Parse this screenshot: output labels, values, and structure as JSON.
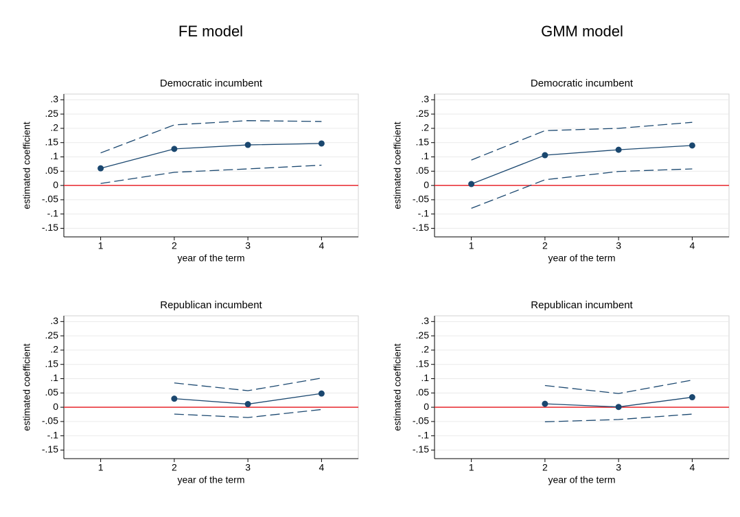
{
  "column_titles": [
    "FE model",
    "GMM model"
  ],
  "chart_data": [
    {
      "type": "line",
      "title": "Democratic incumbent",
      "xlabel": "year of the term",
      "ylabel": "estimated coefficient",
      "x": [
        1,
        2,
        3,
        4
      ],
      "series": [
        {
          "color": "#1a476f",
          "dash": false,
          "markers": true,
          "values": [
            0.06,
            0.128,
            0.142,
            0.147
          ]
        },
        {
          "color": "#1a476f",
          "dash": true,
          "markers": false,
          "values": [
            0.114,
            0.212,
            0.227,
            0.224
          ]
        },
        {
          "color": "#1a476f",
          "dash": true,
          "markers": false,
          "values": [
            0.007,
            0.046,
            0.058,
            0.071
          ]
        }
      ],
      "hline": {
        "value": 0,
        "color": "#e8262b"
      },
      "xlim": [
        0.5,
        4.5
      ],
      "xticks": [
        1,
        2,
        3,
        4
      ],
      "ylim": [
        -0.18,
        0.32
      ],
      "yticks": [
        {
          "value": -0.15,
          "label": "-.15"
        },
        {
          "value": -0.1,
          "label": "-.1"
        },
        {
          "value": -0.05,
          "label": "-.05"
        },
        0,
        {
          "value": 0.05,
          "label": ".05"
        },
        {
          "value": 0.1,
          "label": ".1"
        },
        {
          "value": 0.15,
          "label": ".15"
        },
        {
          "value": 0.2,
          "label": ".2"
        },
        {
          "value": 0.25,
          "label": ".25"
        },
        {
          "value": 0.3,
          "label": ".3"
        }
      ],
      "grid": true
    },
    {
      "type": "line",
      "title": "Democratic incumbent",
      "xlabel": "year of the term",
      "ylabel": "estimated coefficient",
      "x": [
        1,
        2,
        3,
        4
      ],
      "series": [
        {
          "color": "#1a476f",
          "dash": false,
          "markers": true,
          "values": [
            0.005,
            0.106,
            0.125,
            0.14
          ]
        },
        {
          "color": "#1a476f",
          "dash": true,
          "markers": false,
          "values": [
            0.089,
            0.192,
            0.2,
            0.221
          ]
        },
        {
          "color": "#1a476f",
          "dash": true,
          "markers": false,
          "values": [
            -0.08,
            0.02,
            0.049,
            0.058
          ]
        }
      ],
      "hline": {
        "value": 0,
        "color": "#e8262b"
      },
      "xlim": [
        0.5,
        4.5
      ],
      "xticks": [
        1,
        2,
        3,
        4
      ],
      "ylim": [
        -0.18,
        0.32
      ],
      "yticks": [
        {
          "value": -0.15,
          "label": "-.15"
        },
        {
          "value": -0.1,
          "label": "-.1"
        },
        {
          "value": -0.05,
          "label": "-.05"
        },
        0,
        {
          "value": 0.05,
          "label": ".05"
        },
        {
          "value": 0.1,
          "label": ".1"
        },
        {
          "value": 0.15,
          "label": ".15"
        },
        {
          "value": 0.2,
          "label": ".2"
        },
        {
          "value": 0.25,
          "label": ".25"
        },
        {
          "value": 0.3,
          "label": ".3"
        }
      ],
      "grid": true
    },
    {
      "type": "line",
      "title": "Republican incumbent",
      "xlabel": "year of the term",
      "ylabel": "estimated coefficient",
      "x": [
        1,
        2,
        3,
        4
      ],
      "series": [
        {
          "color": "#1a476f",
          "dash": false,
          "markers": true,
          "values": [
            null,
            0.03,
            0.011,
            0.048
          ]
        },
        {
          "color": "#1a476f",
          "dash": true,
          "markers": false,
          "values": [
            null,
            0.085,
            0.058,
            0.102
          ]
        },
        {
          "color": "#1a476f",
          "dash": true,
          "markers": false,
          "values": [
            null,
            -0.024,
            -0.036,
            -0.008
          ]
        }
      ],
      "hline": {
        "value": 0,
        "color": "#e8262b"
      },
      "xlim": [
        0.5,
        4.5
      ],
      "xticks": [
        1,
        2,
        3,
        4
      ],
      "ylim": [
        -0.18,
        0.32
      ],
      "yticks": [
        {
          "value": -0.15,
          "label": "-.15"
        },
        {
          "value": -0.1,
          "label": "-.1"
        },
        {
          "value": -0.05,
          "label": "-.05"
        },
        0,
        {
          "value": 0.05,
          "label": ".05"
        },
        {
          "value": 0.1,
          "label": ".1"
        },
        {
          "value": 0.15,
          "label": ".15"
        },
        {
          "value": 0.2,
          "label": ".2"
        },
        {
          "value": 0.25,
          "label": ".25"
        },
        {
          "value": 0.3,
          "label": ".3"
        }
      ],
      "grid": true
    },
    {
      "type": "line",
      "title": "Republican incumbent",
      "xlabel": "year of the term",
      "ylabel": "estimated coefficient",
      "x": [
        1,
        2,
        3,
        4
      ],
      "series": [
        {
          "color": "#1a476f",
          "dash": false,
          "markers": true,
          "values": [
            null,
            0.012,
            0.001,
            0.035
          ]
        },
        {
          "color": "#1a476f",
          "dash": true,
          "markers": false,
          "values": [
            null,
            0.076,
            0.048,
            0.095
          ]
        },
        {
          "color": "#1a476f",
          "dash": true,
          "markers": false,
          "values": [
            null,
            -0.051,
            -0.043,
            -0.024
          ]
        }
      ],
      "hline": {
        "value": 0,
        "color": "#e8262b"
      },
      "xlim": [
        0.5,
        4.5
      ],
      "xticks": [
        1,
        2,
        3,
        4
      ],
      "ylim": [
        -0.18,
        0.32
      ],
      "yticks": [
        {
          "value": -0.15,
          "label": "-.15"
        },
        {
          "value": -0.1,
          "label": "-.1"
        },
        {
          "value": -0.05,
          "label": "-.05"
        },
        0,
        {
          "value": 0.05,
          "label": ".05"
        },
        {
          "value": 0.1,
          "label": ".1"
        },
        {
          "value": 0.15,
          "label": ".15"
        },
        {
          "value": 0.2,
          "label": ".2"
        },
        {
          "value": 0.25,
          "label": ".25"
        },
        {
          "value": 0.3,
          "label": ".3"
        }
      ],
      "grid": true
    }
  ]
}
